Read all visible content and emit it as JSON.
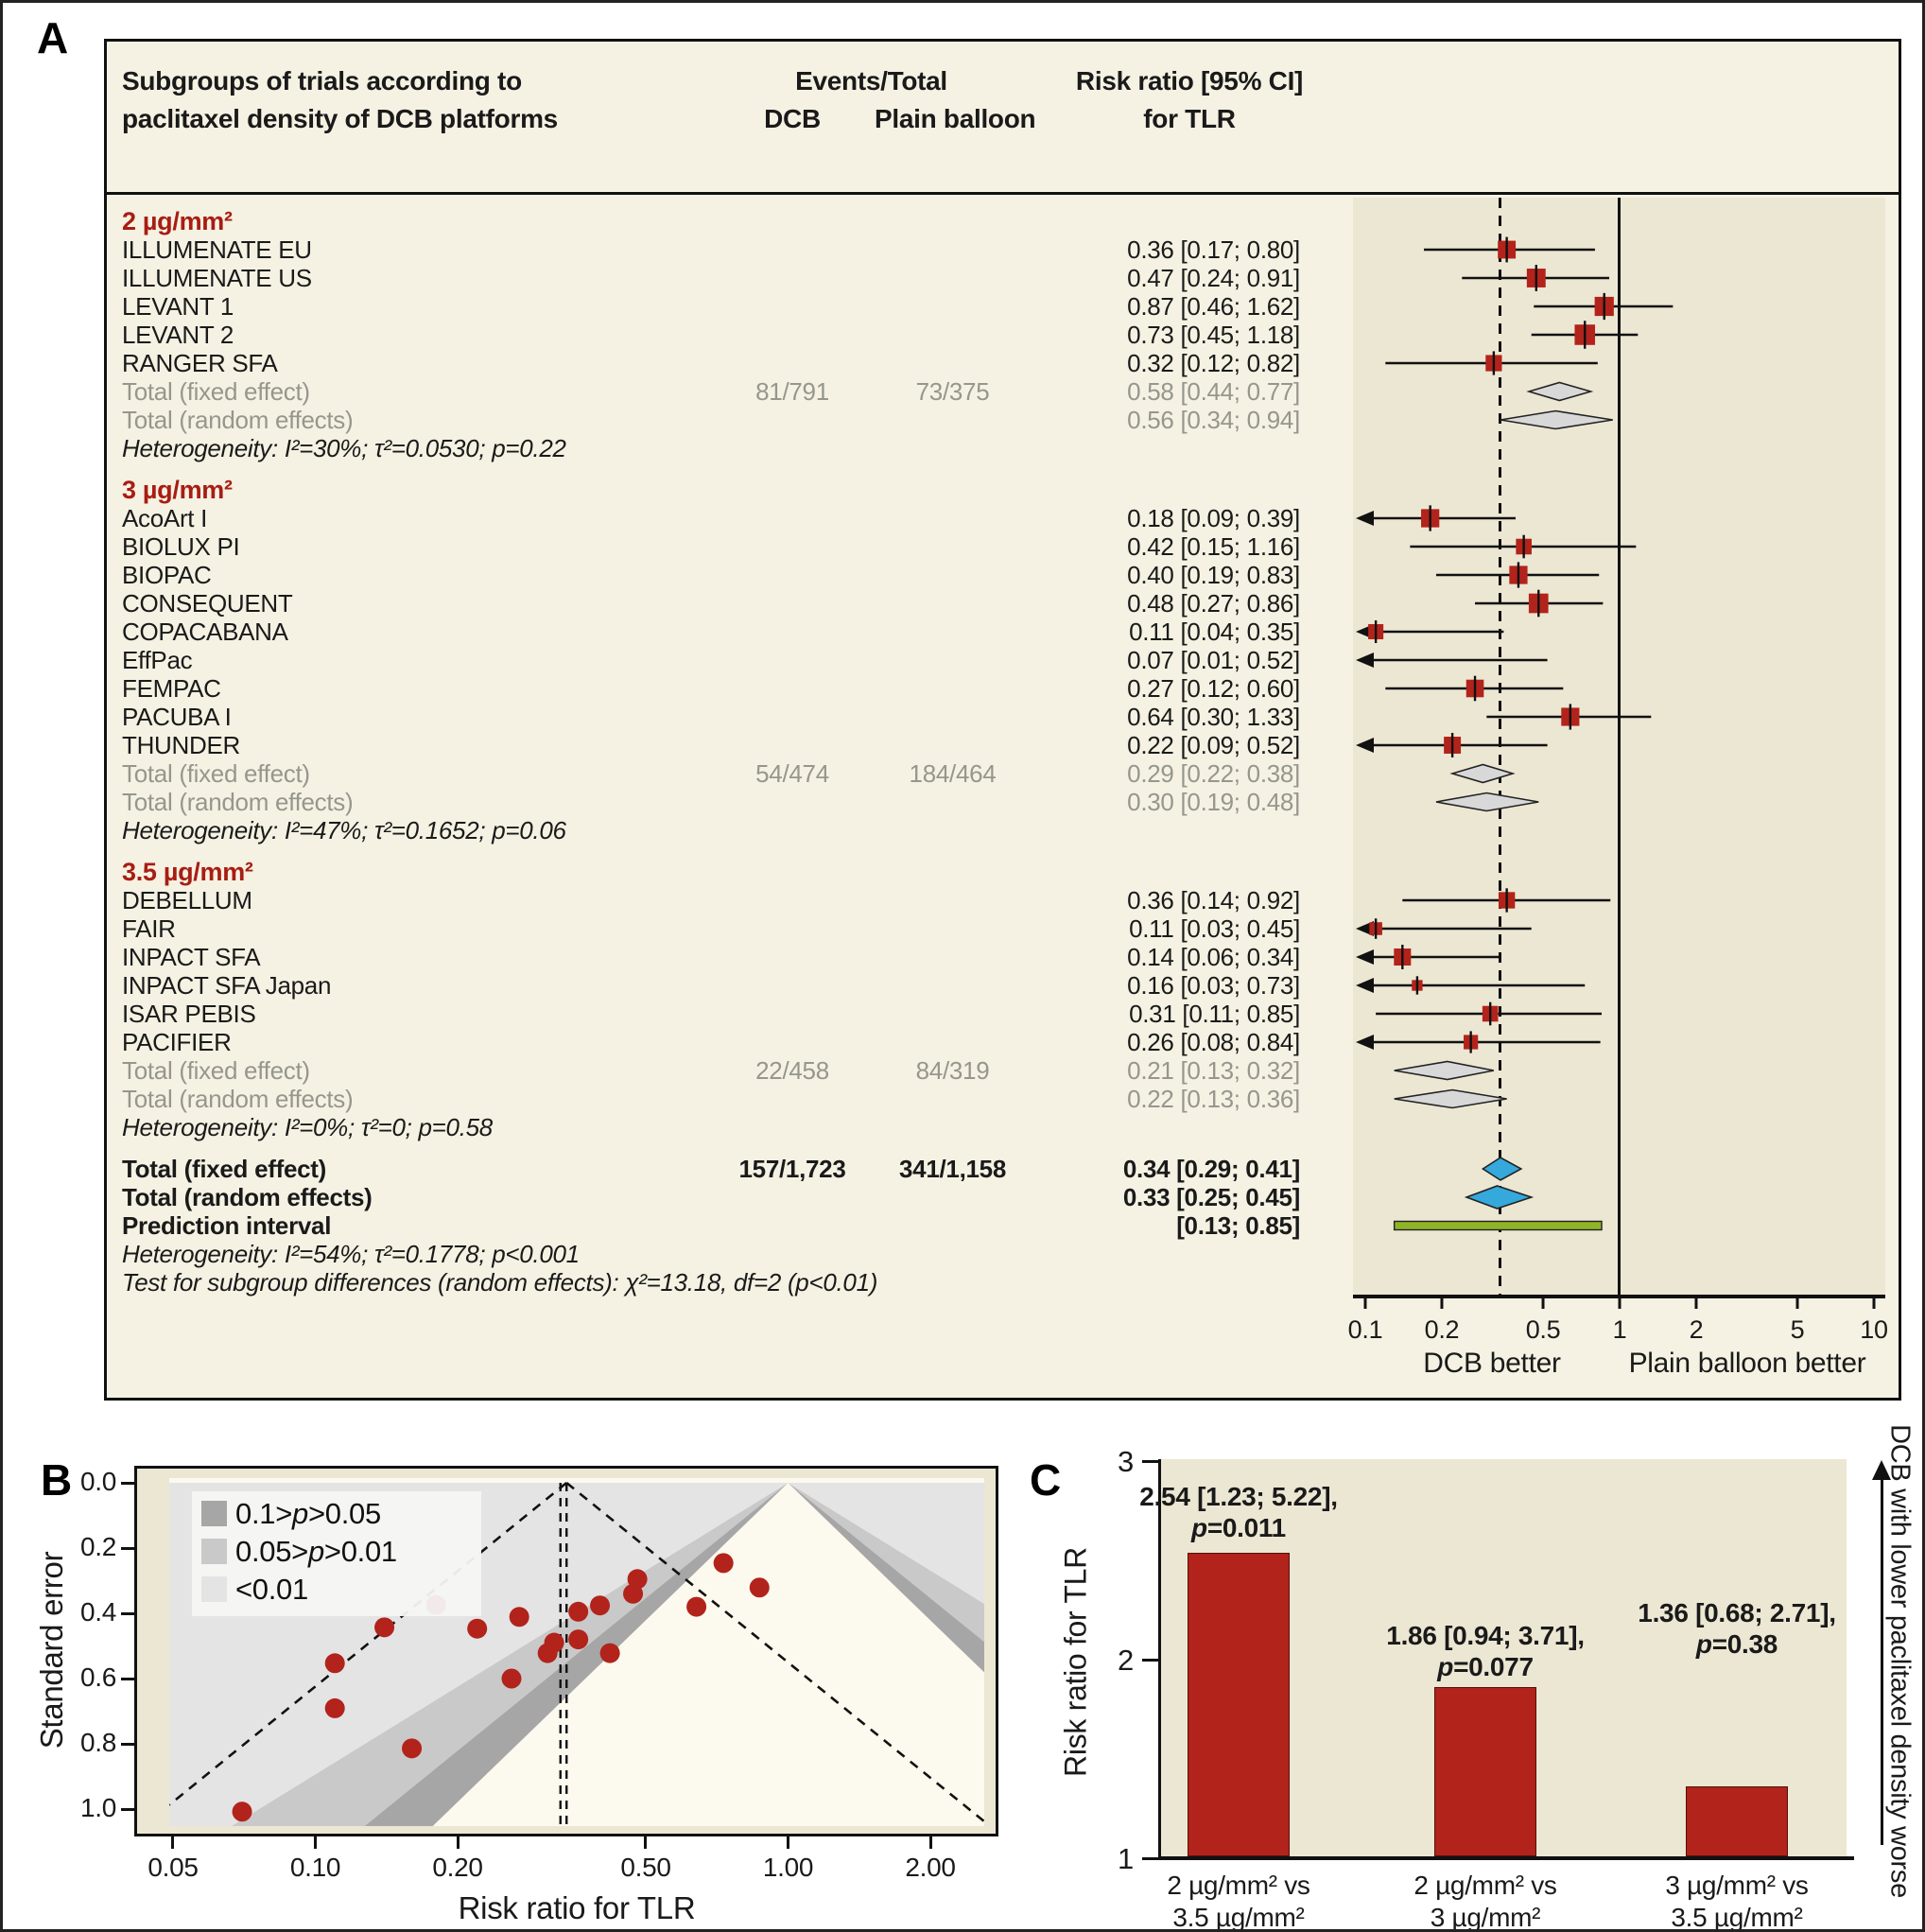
{
  "panel_labels": {
    "a": "A",
    "b": "B",
    "c": "C"
  },
  "colors": {
    "marker_red": "#b2231b",
    "subgroup_red": "#a81d13",
    "diamond_gray": "#d8d8d8",
    "diamond_blue": "#35a8dc",
    "prediction_green": "#8fb527",
    "panel_cream": "#f5f2e3",
    "strip_beige": "#ece7d3",
    "funnel_ivory": "#fcf9ee",
    "muted_text": "#96968d"
  },
  "chart_data": [
    {
      "type": "forest",
      "panel": "A",
      "outcome": "TLR",
      "header": {
        "col_trials_line1": "Subgroups of trials according to",
        "col_trials_line2": "paclitaxel density of DCB platforms",
        "col_events": "Events/Total",
        "col_dcb": "DCB",
        "col_plain": "Plain balloon",
        "col_rr_line1": "Risk ratio [95% CI]",
        "col_rr_line2": "for TLR"
      },
      "axis": {
        "scale": "log",
        "xmin": 0.1,
        "xmax": 10,
        "ticks": [
          0.1,
          0.2,
          0.5,
          1,
          2,
          5,
          10
        ],
        "tick_labels": [
          "0.1",
          "0.2",
          "0.5",
          "1",
          "2",
          "5",
          "10"
        ],
        "null_line": 1,
        "pooled_line": 0.34,
        "left_label": "DCB better",
        "right_label": "Plain balloon better"
      },
      "subgroups": [
        {
          "label": "2 µg/mm²",
          "studies": [
            {
              "name": "ILLUMENATE EU",
              "rr": 0.36,
              "lo": 0.17,
              "hi": 0.8,
              "se": 0.395
            },
            {
              "name": "ILLUMENATE US",
              "rr": 0.47,
              "lo": 0.24,
              "hi": 0.91,
              "se": 0.34
            },
            {
              "name": "LEVANT 1",
              "rr": 0.87,
              "lo": 0.46,
              "hi": 1.62,
              "se": 0.321
            },
            {
              "name": "LEVANT 2",
              "rr": 0.73,
              "lo": 0.45,
              "hi": 1.18,
              "se": 0.246
            },
            {
              "name": "RANGER SFA",
              "rr": 0.32,
              "lo": 0.12,
              "hi": 0.82,
              "se": 0.49
            }
          ],
          "total_fixed": {
            "label": "Total (fixed effect)",
            "events_dcb": "81/791",
            "events_plain": "73/375",
            "rr": 0.58,
            "lo": 0.44,
            "hi": 0.77
          },
          "total_random": {
            "label": "Total (random effects)",
            "rr": 0.56,
            "lo": 0.34,
            "hi": 0.94
          },
          "heterogeneity": "Heterogeneity: I²=30%; τ²=0.0530; p=0.22"
        },
        {
          "label": "3 µg/mm²",
          "studies": [
            {
              "name": "AcoArt I",
              "rr": 0.18,
              "lo": 0.09,
              "hi": 0.39,
              "se": 0.374
            },
            {
              "name": "BIOLUX PI",
              "rr": 0.42,
              "lo": 0.15,
              "hi": 1.16,
              "se": 0.522
            },
            {
              "name": "BIOPAC",
              "rr": 0.4,
              "lo": 0.19,
              "hi": 0.83,
              "se": 0.376
            },
            {
              "name": "CONSEQUENT",
              "rr": 0.48,
              "lo": 0.27,
              "hi": 0.86,
              "se": 0.295
            },
            {
              "name": "COPACABANA",
              "rr": 0.11,
              "lo": 0.04,
              "hi": 0.35,
              "se": 0.553
            },
            {
              "name": "EffPac",
              "rr": 0.07,
              "lo": 0.01,
              "hi": 0.52,
              "se": 1.008
            },
            {
              "name": "FEMPAC",
              "rr": 0.27,
              "lo": 0.12,
              "hi": 0.6,
              "se": 0.411
            },
            {
              "name": "PACUBA I",
              "rr": 0.64,
              "lo": 0.3,
              "hi": 1.33,
              "se": 0.38
            },
            {
              "name": "THUNDER",
              "rr": 0.22,
              "lo": 0.09,
              "hi": 0.52,
              "se": 0.447
            }
          ],
          "total_fixed": {
            "label": "Total (fixed effect)",
            "events_dcb": "54/474",
            "events_plain": "184/464",
            "rr": 0.29,
            "lo": 0.22,
            "hi": 0.38
          },
          "total_random": {
            "label": "Total (random effects)",
            "rr": 0.3,
            "lo": 0.19,
            "hi": 0.48
          },
          "heterogeneity": "Heterogeneity: I²=47%; τ²=0.1652; p=0.06"
        },
        {
          "label": "3.5 µg/mm²",
          "studies": [
            {
              "name": "DEBELLUM",
              "rr": 0.36,
              "lo": 0.14,
              "hi": 0.92,
              "se": 0.48
            },
            {
              "name": "FAIR",
              "rr": 0.11,
              "lo": 0.03,
              "hi": 0.45,
              "se": 0.691
            },
            {
              "name": "INPACT SFA",
              "rr": 0.14,
              "lo": 0.06,
              "hi": 0.34,
              "se": 0.443
            },
            {
              "name": "INPACT SFA Japan",
              "rr": 0.16,
              "lo": 0.03,
              "hi": 0.73,
              "se": 0.814
            },
            {
              "name": "ISAR PEBIS",
              "rr": 0.31,
              "lo": 0.11,
              "hi": 0.85,
              "se": 0.522
            },
            {
              "name": "PACIFIER",
              "rr": 0.26,
              "lo": 0.08,
              "hi": 0.84,
              "se": 0.6
            }
          ],
          "total_fixed": {
            "label": "Total (fixed effect)",
            "events_dcb": "22/458",
            "events_plain": "84/319",
            "rr": 0.21,
            "lo": 0.13,
            "hi": 0.32
          },
          "total_random": {
            "label": "Total (random effects)",
            "rr": 0.22,
            "lo": 0.13,
            "hi": 0.36
          },
          "heterogeneity": "Heterogeneity: I²=0%; τ²=0; p=0.58"
        }
      ],
      "overall": {
        "total_fixed": {
          "label": "Total (fixed effect)",
          "events_dcb": "157/1,723",
          "events_plain": "341/1,158",
          "rr": 0.34,
          "lo": 0.29,
          "hi": 0.41
        },
        "total_random": {
          "label": "Total (random effects)",
          "rr": 0.33,
          "lo": 0.25,
          "hi": 0.45
        },
        "prediction": {
          "label": "Prediction interval",
          "lo": 0.13,
          "hi": 0.85
        },
        "heterogeneity": "Heterogeneity: I²=54%; τ²=0.1778; p<0.001",
        "subgroup_test": "Test for subgroup differences (random effects): χ²=13.18, df=2 (p<0.01)"
      }
    },
    {
      "type": "scatter",
      "panel": "B",
      "subtype": "contour-enhanced-funnel",
      "xlabel": "Risk ratio for TLR",
      "ylabel": "Standard error",
      "x_ticks": [
        0.05,
        0.1,
        0.2,
        0.5,
        1.0,
        2.0
      ],
      "x_tick_labels": [
        "0.05",
        "0.10",
        "0.20",
        "0.50",
        "1.00",
        "2.00"
      ],
      "y_ticks": [
        0,
        0.2,
        0.4,
        0.6,
        0.8,
        1.0
      ],
      "y_tick_labels": [
        "0.0",
        "0.2",
        "0.4",
        "0.6",
        "0.8",
        "1.0"
      ],
      "xlim": [
        0.049,
        2.6
      ],
      "ylim_se": [
        0,
        1.05
      ],
      "funnel_apex_rr": 1.0,
      "pooled_rr": 0.34,
      "pooled_rr_random": 0.33,
      "legend": [
        {
          "label": "0.1>p>0.05",
          "color": "#a6a6a7"
        },
        {
          "label": "0.05>p>0.01",
          "color": "#c9c9ca"
        },
        {
          "label": "<0.01",
          "color": "#e4e4e5"
        }
      ],
      "points": [
        {
          "name": "ILLUMENATE EU",
          "rr": 0.36,
          "se": 0.395
        },
        {
          "name": "ILLUMENATE US",
          "rr": 0.47,
          "se": 0.34
        },
        {
          "name": "LEVANT 1",
          "rr": 0.87,
          "se": 0.321
        },
        {
          "name": "LEVANT 2",
          "rr": 0.73,
          "se": 0.246
        },
        {
          "name": "RANGER SFA",
          "rr": 0.32,
          "se": 0.49
        },
        {
          "name": "AcoArt I",
          "rr": 0.18,
          "se": 0.374
        },
        {
          "name": "BIOLUX PI",
          "rr": 0.42,
          "se": 0.522
        },
        {
          "name": "BIOPAC",
          "rr": 0.4,
          "se": 0.376
        },
        {
          "name": "CONSEQUENT",
          "rr": 0.48,
          "se": 0.295
        },
        {
          "name": "COPACABANA",
          "rr": 0.11,
          "se": 0.553
        },
        {
          "name": "EffPac",
          "rr": 0.07,
          "se": 1.008
        },
        {
          "name": "FEMPAC",
          "rr": 0.27,
          "se": 0.411
        },
        {
          "name": "PACUBA I",
          "rr": 0.64,
          "se": 0.38
        },
        {
          "name": "THUNDER",
          "rr": 0.22,
          "se": 0.447
        },
        {
          "name": "DEBELLUM",
          "rr": 0.36,
          "se": 0.48
        },
        {
          "name": "FAIR",
          "rr": 0.11,
          "se": 0.691
        },
        {
          "name": "INPACT SFA",
          "rr": 0.14,
          "se": 0.443
        },
        {
          "name": "INPACT SFA Japan",
          "rr": 0.16,
          "se": 0.814
        },
        {
          "name": "ISAR PEBIS",
          "rr": 0.31,
          "se": 0.522
        },
        {
          "name": "PACIFIER",
          "rr": 0.26,
          "se": 0.6
        }
      ]
    },
    {
      "type": "bar",
      "panel": "C",
      "ylabel": "Risk ratio for TLR",
      "right_label": "DCB with lower paclitaxel density worse",
      "ylim": [
        1,
        3
      ],
      "y_ticks": [
        1,
        2,
        3
      ],
      "bar_color": "#b2231b",
      "categories": [
        [
          "2 µg/mm² vs",
          "3.5 µg/mm²"
        ],
        [
          "2 µg/mm² vs",
          "3 µg/mm²"
        ],
        [
          "3 µg/mm² vs",
          "3.5 µg/mm²"
        ]
      ],
      "values": [
        2.54,
        1.86,
        1.36
      ],
      "annotations": [
        {
          "estimate": "2.54 [1.23; 5.22],",
          "p": "0.011"
        },
        {
          "estimate": "1.86 [0.94; 3.71],",
          "p": "0.077"
        },
        {
          "estimate": "1.36 [0.68; 2.71],",
          "p": "0.38"
        }
      ]
    }
  ]
}
